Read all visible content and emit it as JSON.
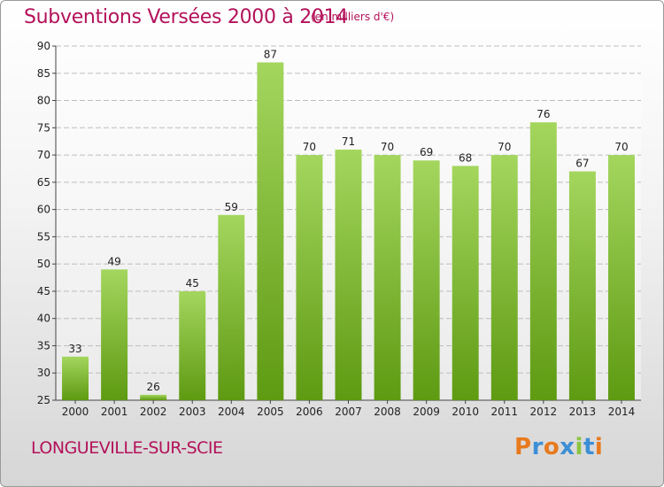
{
  "header": {
    "title": "Subventions Versées 2000 à 2014",
    "subtitle": "(en milliers d'€)"
  },
  "footer": {
    "commune": "LONGUEVILLE-SUR-SCIE",
    "logo": "Proxiti"
  },
  "colors": {
    "title": "#b3125a",
    "bar_top": "#a4d65e",
    "bar_bottom": "#5e9a12",
    "logo_letters": [
      "#e87a1e",
      "#3c8fd6",
      "#e87a1e",
      "#3c8fd6",
      "#8bc43f",
      "#3c8fd6",
      "#e87a1e"
    ]
  },
  "chart_data": {
    "type": "bar",
    "title": "Subventions Versées 2000 à 2014",
    "subtitle": "(en milliers d'€)",
    "categories": [
      "2000",
      "2001",
      "2002",
      "2003",
      "2004",
      "2005",
      "2006",
      "2007",
      "2008",
      "2009",
      "2010",
      "2011",
      "2012",
      "2013",
      "2014"
    ],
    "values": [
      33,
      49,
      26,
      45,
      59,
      87,
      70,
      71,
      70,
      69,
      68,
      70,
      76,
      67,
      70
    ],
    "ylim": [
      25,
      90
    ],
    "yticks": [
      25,
      30,
      35,
      40,
      45,
      50,
      55,
      60,
      65,
      70,
      75,
      80,
      85,
      90
    ],
    "grid": true,
    "legend": "none"
  }
}
